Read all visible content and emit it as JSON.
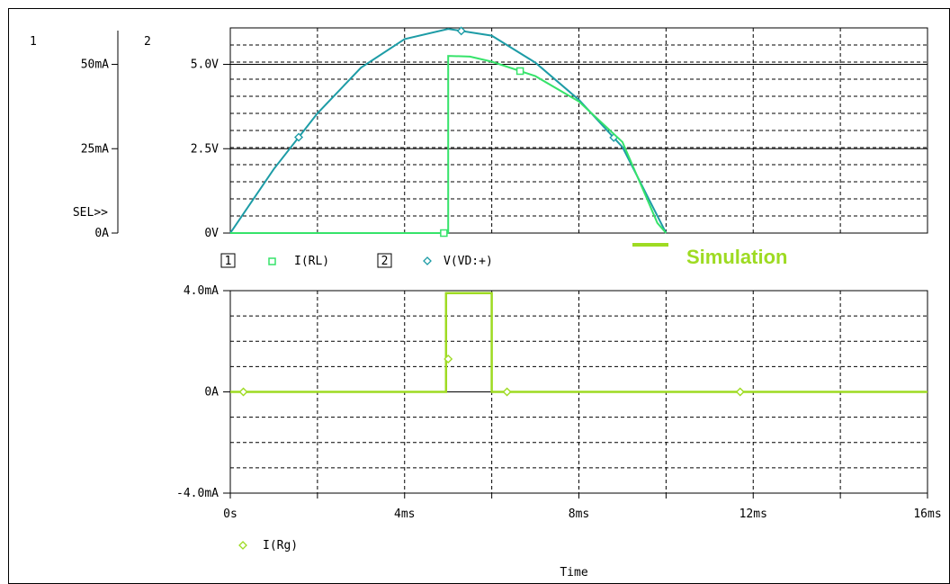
{
  "colors": {
    "teal": "#1d9ca6",
    "green_rl": "#36e36a",
    "lime": "#9edb22",
    "grid": "#000000",
    "frame": "#000000"
  },
  "markers": {
    "rl": "square",
    "vd": "diamond",
    "rg": "diamond"
  },
  "annotation": {
    "text": "Simulation"
  },
  "chart_data": [
    {
      "type": "line",
      "title": "",
      "xlabel": "Time",
      "x_unit": "ms",
      "xlim": [
        0,
        16
      ],
      "x_ticks": [
        0,
        2,
        4,
        6,
        8,
        10,
        12,
        14,
        16
      ],
      "axes": [
        {
          "id": "1",
          "label": "1",
          "ylim": [
            0,
            60
          ],
          "ticks": [
            {
              "value": 0,
              "label": "0A"
            },
            {
              "value": 25,
              "label": "25mA"
            },
            {
              "value": 50,
              "label": "50mA"
            }
          ],
          "sel_label": "SEL>>"
        },
        {
          "id": "2",
          "label": "2",
          "ylim": [
            0,
            6
          ],
          "ticks": [
            {
              "value": 0,
              "label": "0V"
            },
            {
              "value": 2.5,
              "label": "2.5V"
            },
            {
              "value": 5.0,
              "label": "5.0V"
            }
          ]
        }
      ],
      "legend": [
        {
          "axis_box": "1",
          "marker": "square",
          "name": "I(RL)",
          "color": "#36e36a"
        },
        {
          "axis_box": "2",
          "marker": "diamond",
          "name": "V(VD:+)",
          "color": "#1d9ca6"
        }
      ],
      "series": [
        {
          "name": "V(VD:+)",
          "axis": "2",
          "color": "#1d9ca6",
          "marker": "diamond",
          "marker_x": [
            1.57,
            5.3,
            8.8
          ],
          "points": [
            [
              0,
              0
            ],
            [
              1,
              1.9
            ],
            [
              2,
              3.55
            ],
            [
              3,
              4.9
            ],
            [
              4,
              5.75
            ],
            [
              5,
              6.05
            ],
            [
              6,
              5.85
            ],
            [
              7,
              5.05
            ],
            [
              8,
              3.95
            ],
            [
              9,
              2.55
            ],
            [
              10,
              0
            ]
          ]
        },
        {
          "name": "I(RL)",
          "axis": "1",
          "color": "#36e36a",
          "marker": "square",
          "marker_x": [
            4.9,
            6.65
          ],
          "points": [
            [
              0,
              0
            ],
            [
              5,
              0
            ],
            [
              5,
              52.5
            ],
            [
              5.5,
              52.3
            ],
            [
              6,
              50.8
            ],
            [
              7,
              46.5
            ],
            [
              8,
              39
            ],
            [
              9,
              27
            ],
            [
              9.5,
              12
            ],
            [
              9.8,
              3
            ],
            [
              10,
              0
            ]
          ]
        }
      ]
    },
    {
      "type": "line",
      "title": "",
      "xlabel": "Time",
      "xlim": [
        0,
        16
      ],
      "x_ticks": [
        0,
        2,
        4,
        6,
        8,
        10,
        12,
        14,
        16
      ],
      "x_tick_labels": [
        {
          "value": 0,
          "label": "0s"
        },
        {
          "value": 4,
          "label": "4ms"
        },
        {
          "value": 8,
          "label": "8ms"
        },
        {
          "value": 12,
          "label": "12ms"
        },
        {
          "value": 16,
          "label": "16ms"
        }
      ],
      "ylim": [
        -4,
        4
      ],
      "y_ticks": [
        {
          "value": 4,
          "label": "4.0mA"
        },
        {
          "value": 0,
          "label": "0A"
        },
        {
          "value": -4,
          "label": "-4.0mA"
        }
      ],
      "legend": [
        {
          "marker": "diamond",
          "name": "I(Rg)",
          "color": "#9edb22"
        }
      ],
      "series": [
        {
          "name": "I(Rg)",
          "color": "#9edb22",
          "marker": "diamond",
          "marker_x": [
            0.3,
            5.0,
            6.35,
            11.7
          ],
          "points": [
            [
              0,
              0
            ],
            [
              4.95,
              0
            ],
            [
              4.95,
              3.9
            ],
            [
              6.0,
              3.9
            ],
            [
              6.0,
              0
            ],
            [
              16,
              0
            ]
          ],
          "zero_baseline_segment": [
            4.95,
            6.0
          ]
        }
      ]
    }
  ]
}
